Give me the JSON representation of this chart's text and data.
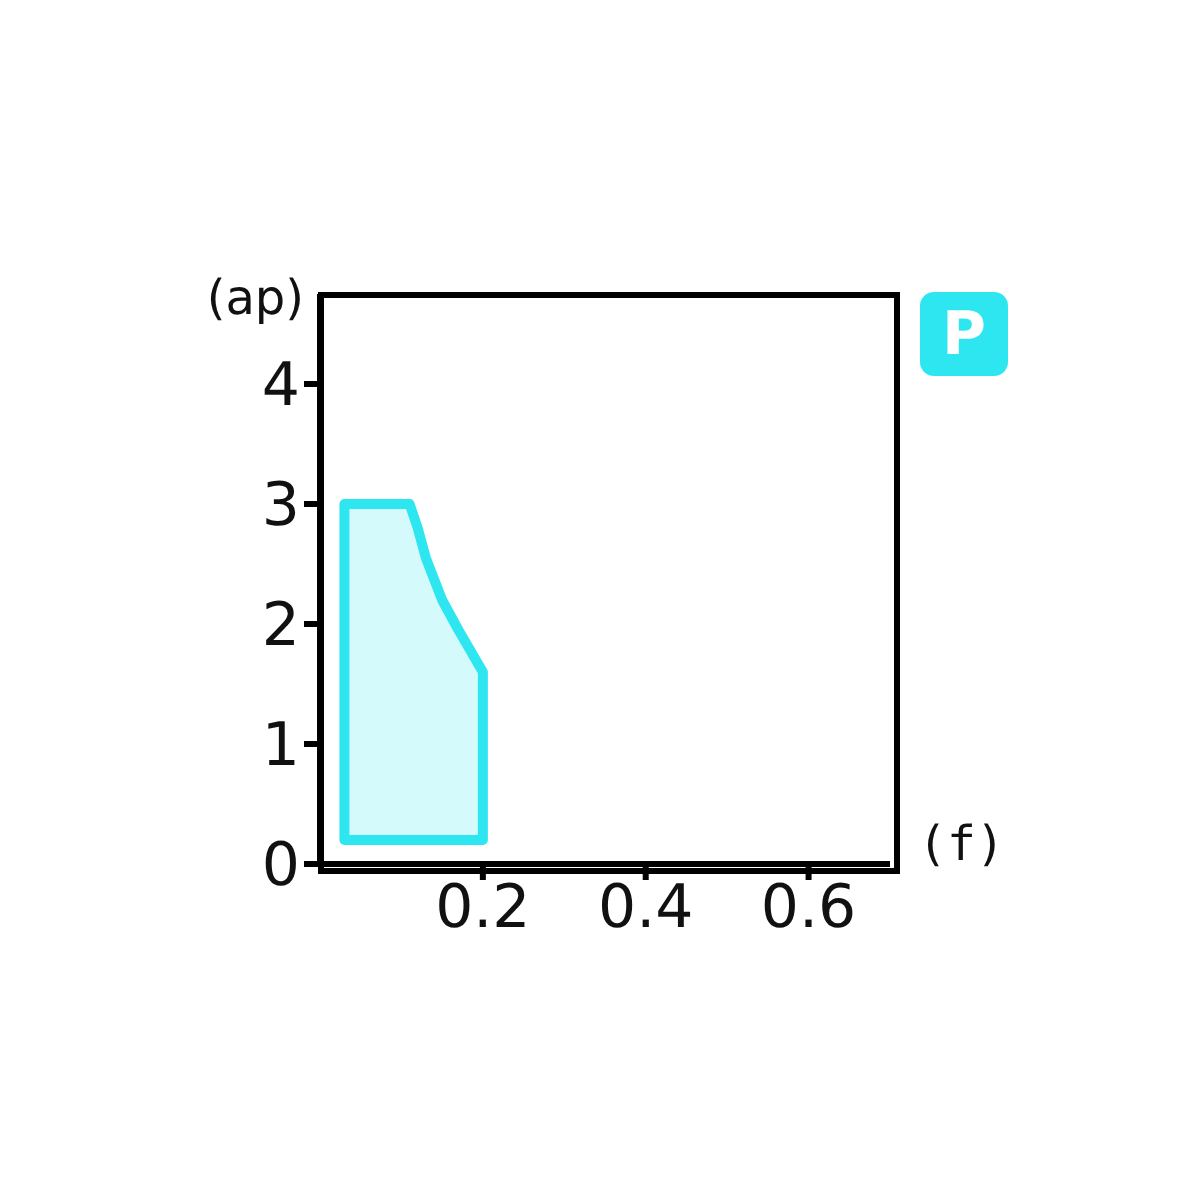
{
  "chart_data": {
    "type": "area",
    "xlabel": "(f)",
    "ylabel": "(ap)",
    "annotations": [
      "P"
    ],
    "series": [
      {
        "color": "#2ee6f0",
        "x": [
          0.03,
          0.03,
          0.11,
          0.12,
          0.13,
          0.15,
          0.17,
          0.2,
          0.2,
          0.03
        ],
        "values": [
          0.2,
          3,
          3,
          2.8,
          2.55,
          2.2,
          1.95,
          1.6,
          0.2,
          0.2
        ]
      }
    ],
    "xlim": [
      0,
      0.7
    ],
    "xticks": [
      0.2,
      0.4,
      0.6
    ],
    "ylim": [
      0,
      4.75
    ],
    "yticks": [
      0,
      1,
      2,
      3,
      4
    ],
    "grid": false,
    "legend": false
  }
}
